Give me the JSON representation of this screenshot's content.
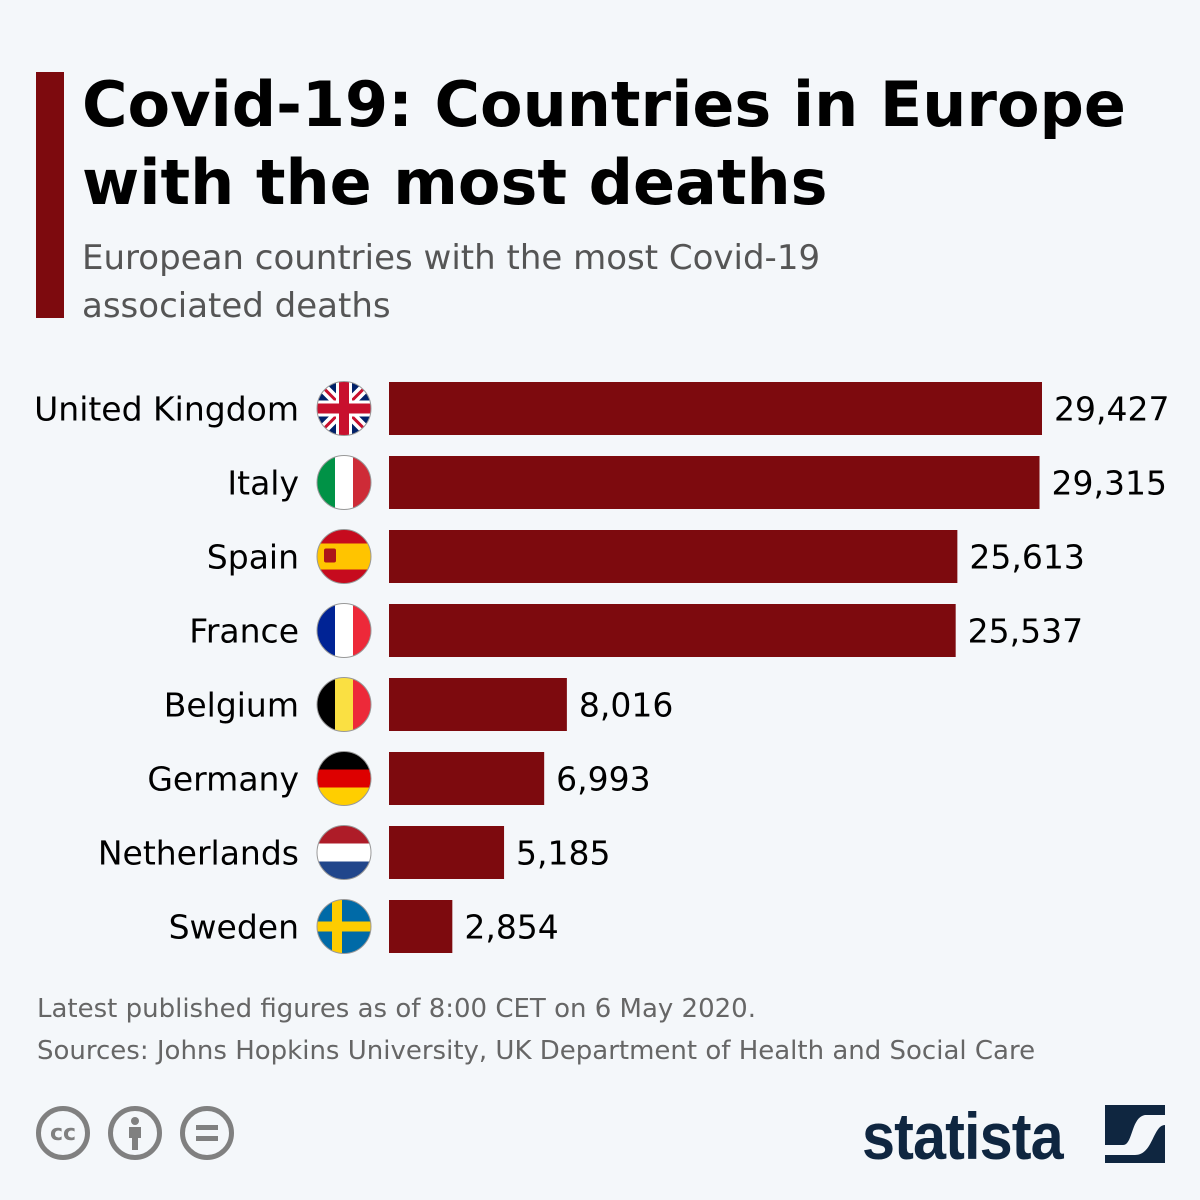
{
  "title": "Covid-19: Countries in Europe with the most deaths",
  "subtitle": "European countries with the most Covid-19 associated deaths",
  "chart_data": {
    "type": "bar",
    "orientation": "horizontal",
    "categories": [
      "United Kingdom",
      "Italy",
      "Spain",
      "France",
      "Belgium",
      "Germany",
      "Netherlands",
      "Sweden"
    ],
    "values": [
      29427,
      29315,
      25613,
      25537,
      8016,
      6993,
      5185,
      2854
    ],
    "value_labels": [
      "29,427",
      "29,315",
      "25,613",
      "25,537",
      "8,016",
      "6,993",
      "5,185",
      "2,854"
    ],
    "flags": [
      "uk-flag",
      "italy-flag",
      "spain-flag",
      "france-flag",
      "belgium-flag",
      "germany-flag",
      "netherlands-flag",
      "sweden-flag"
    ],
    "bar_color": "#7d0a0e",
    "xlim": [
      0,
      29427
    ],
    "grid": false
  },
  "footer": {
    "note": "Latest published figures as of 8:00 CET on 6 May 2020.",
    "sources": "Sources: Johns Hopkins University, UK Department of Health and Social Care",
    "cc_label": "cc",
    "logo": "statista"
  }
}
